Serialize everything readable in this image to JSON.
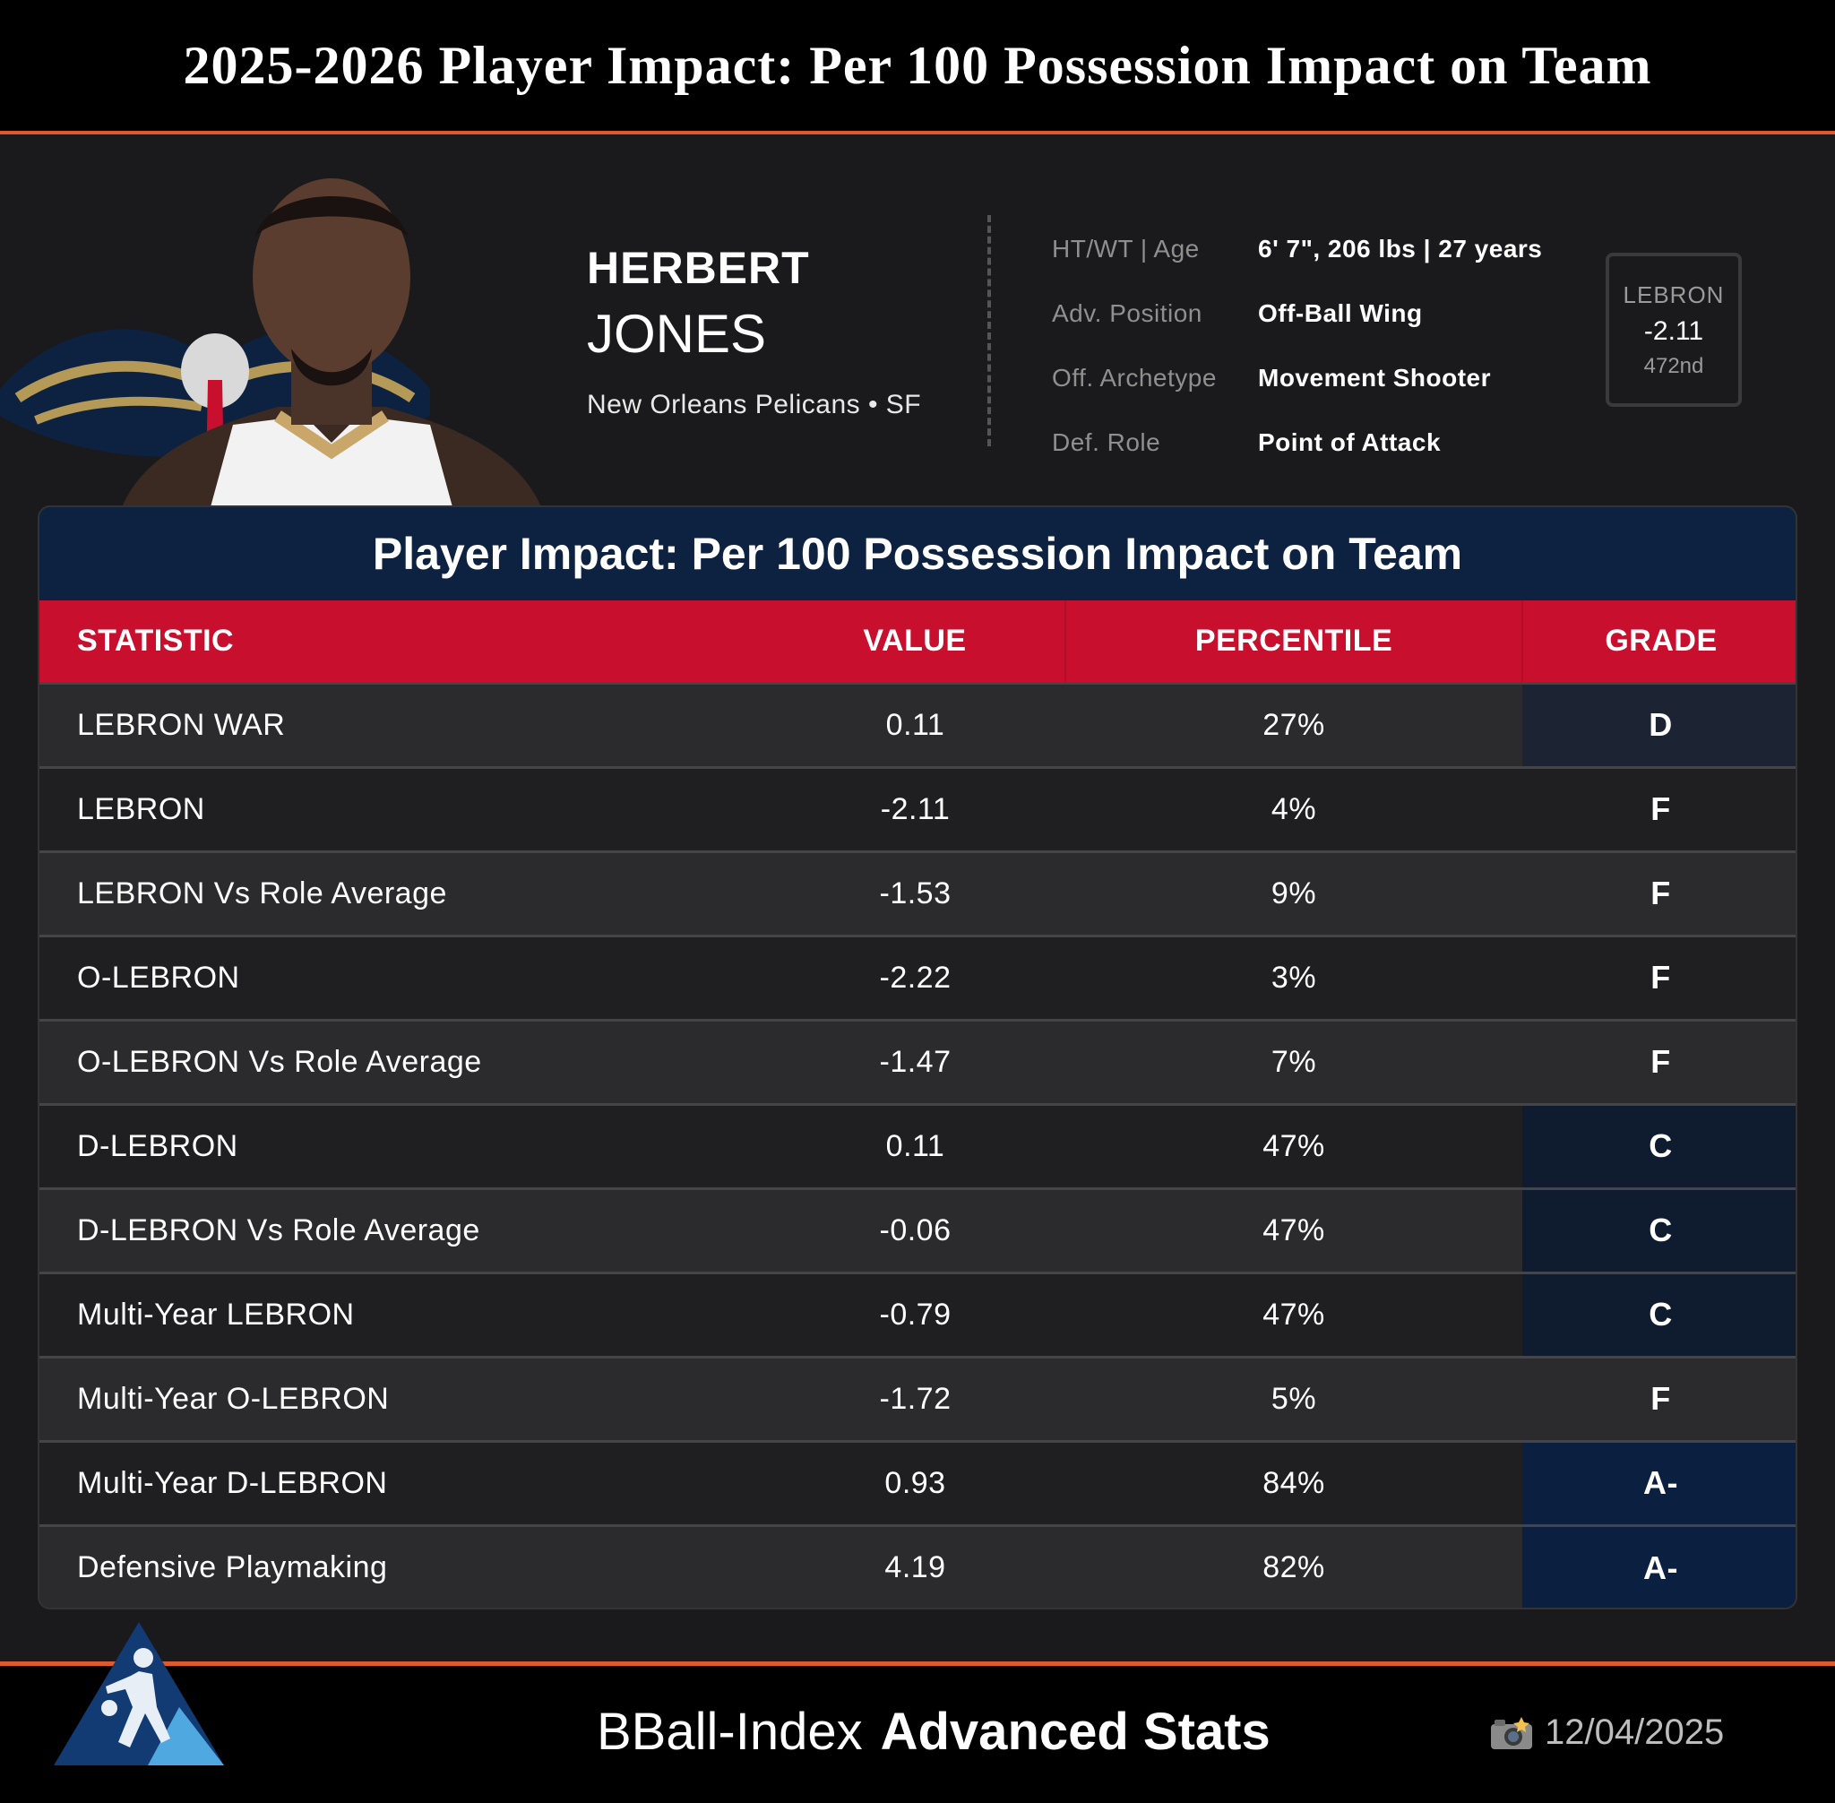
{
  "header": {
    "title": "2025-2026 Player Impact: Per 100 Possession Impact on Team"
  },
  "player": {
    "first_name": "HERBERT",
    "last_name": "JONES",
    "team_line": "New Orleans Pelicans • SF",
    "info": [
      {
        "label": "HT/WT | Age",
        "value": "6' 7\", 206 lbs | 27 years"
      },
      {
        "label": "Adv. Position",
        "value": "Off-Ball Wing"
      },
      {
        "label": "Off. Archetype",
        "value": "Movement Shooter"
      },
      {
        "label": "Def. Role",
        "value": "Point of Attack"
      }
    ],
    "lebron_box": {
      "label": "LEBRON",
      "value": "-2.11",
      "rank": "472nd"
    }
  },
  "panel": {
    "title": "Player Impact: Per 100 Possession Impact on Team",
    "columns": [
      "STATISTIC",
      "VALUE",
      "PERCENTILE",
      "GRADE"
    ],
    "rows": [
      {
        "stat": "LEBRON WAR",
        "value": "0.11",
        "percentile": "27%",
        "grade": "D"
      },
      {
        "stat": "LEBRON",
        "value": "-2.11",
        "percentile": "4%",
        "grade": "F"
      },
      {
        "stat": "LEBRON Vs Role Average",
        "value": "-1.53",
        "percentile": "9%",
        "grade": "F"
      },
      {
        "stat": "O-LEBRON",
        "value": "-2.22",
        "percentile": "3%",
        "grade": "F"
      },
      {
        "stat": "O-LEBRON Vs Role Average",
        "value": "-1.47",
        "percentile": "7%",
        "grade": "F"
      },
      {
        "stat": "D-LEBRON",
        "value": "0.11",
        "percentile": "47%",
        "grade": "C"
      },
      {
        "stat": "D-LEBRON Vs Role Average",
        "value": "-0.06",
        "percentile": "47%",
        "grade": "C"
      },
      {
        "stat": "Multi-Year LEBRON",
        "value": "-0.79",
        "percentile": "47%",
        "grade": "C"
      },
      {
        "stat": "Multi-Year O-LEBRON",
        "value": "-1.72",
        "percentile": "5%",
        "grade": "F"
      },
      {
        "stat": "Multi-Year D-LEBRON",
        "value": "0.93",
        "percentile": "84%",
        "grade": "A-"
      },
      {
        "stat": "Defensive Playmaking",
        "value": "4.19",
        "percentile": "82%",
        "grade": "A-"
      }
    ]
  },
  "footer": {
    "brand_light": "BBall-Index",
    "brand_bold": "Advanced Stats",
    "date": "12/04/2025"
  },
  "colors": {
    "accent": "#e0582c",
    "header_red": "#c8102e",
    "panel_navy": "#0d2241"
  }
}
